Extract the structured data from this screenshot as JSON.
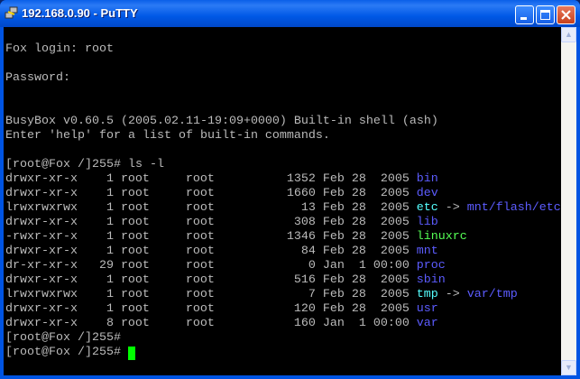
{
  "window": {
    "title": "192.168.0.90 - PuTTY",
    "icon": "putty-icon"
  },
  "colors": {
    "text": "#bbbbbb",
    "dir": "#5c5cff",
    "link": "#55ffff",
    "exec": "#55ff55",
    "cursor": "#00ff00"
  },
  "lines": {
    "login": "Fox login: root",
    "password": "Password:",
    "busybox": "BusyBox v0.60.5 (2005.02.11-19:09+0000) Built-in shell (ash)",
    "help": "Enter 'help' for a list of built-in commands.",
    "cmd": "[root@Fox /]255# ls -l",
    "prompt1": "[root@Fox /]255#",
    "prompt2": "[root@Fox /]255# "
  },
  "entries": [
    {
      "perms": "drwxr-xr-x",
      "links": "1",
      "owner": "root",
      "group": "root",
      "size": "1352",
      "date": "Feb 28  2005",
      "name": "bin",
      "type": "dir"
    },
    {
      "perms": "drwxr-xr-x",
      "links": "1",
      "owner": "root",
      "group": "root",
      "size": "1660",
      "date": "Feb 28  2005",
      "name": "dev",
      "type": "dir"
    },
    {
      "perms": "lrwxrwxrwx",
      "links": "1",
      "owner": "root",
      "group": "root",
      "size": "13",
      "date": "Feb 28  2005",
      "name": "etc",
      "type": "link",
      "arrow": " -> ",
      "target": "mnt/flash/etc"
    },
    {
      "perms": "drwxr-xr-x",
      "links": "1",
      "owner": "root",
      "group": "root",
      "size": "308",
      "date": "Feb 28  2005",
      "name": "lib",
      "type": "dir"
    },
    {
      "perms": "-rwxr-xr-x",
      "links": "1",
      "owner": "root",
      "group": "root",
      "size": "1346",
      "date": "Feb 28  2005",
      "name": "linuxrc",
      "type": "exec"
    },
    {
      "perms": "drwxr-xr-x",
      "links": "1",
      "owner": "root",
      "group": "root",
      "size": "84",
      "date": "Feb 28  2005",
      "name": "mnt",
      "type": "dir"
    },
    {
      "perms": "dr-xr-xr-x",
      "links": "29",
      "owner": "root",
      "group": "root",
      "size": "0",
      "date": "Jan  1 00:00",
      "name": "proc",
      "type": "dir"
    },
    {
      "perms": "drwxr-xr-x",
      "links": "1",
      "owner": "root",
      "group": "root",
      "size": "516",
      "date": "Feb 28  2005",
      "name": "sbin",
      "type": "dir"
    },
    {
      "perms": "lrwxrwxrwx",
      "links": "1",
      "owner": "root",
      "group": "root",
      "size": "7",
      "date": "Feb 28  2005",
      "name": "tmp",
      "type": "link",
      "arrow": " -> ",
      "target": "var/tmp"
    },
    {
      "perms": "drwxr-xr-x",
      "links": "1",
      "owner": "root",
      "group": "root",
      "size": "120",
      "date": "Feb 28  2005",
      "name": "usr",
      "type": "dir"
    },
    {
      "perms": "drwxr-xr-x",
      "links": "8",
      "owner": "root",
      "group": "root",
      "size": "160",
      "date": "Jan  1 00:00",
      "name": "var",
      "type": "dir"
    }
  ]
}
